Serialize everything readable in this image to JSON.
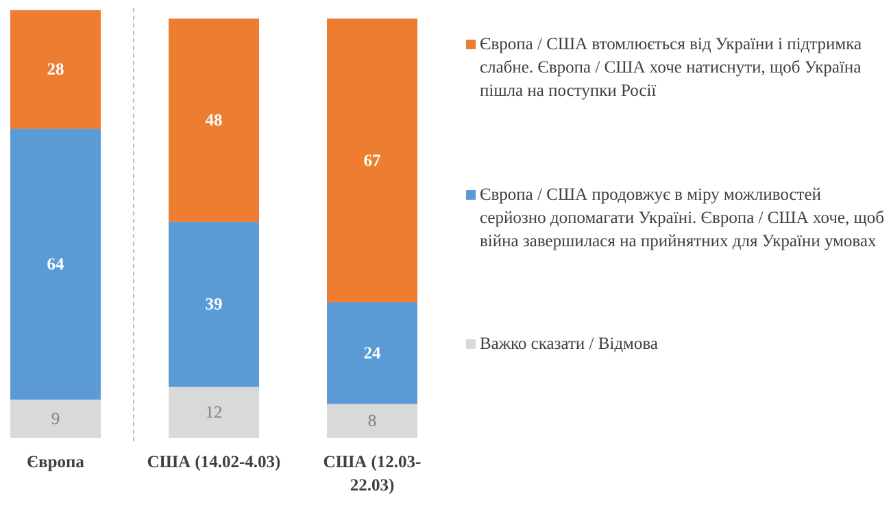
{
  "chart_data": {
    "type": "stacked-bar",
    "categories": [
      "Європа",
      "США (14.02-4.03)",
      "США (12.03-22.03)"
    ],
    "series": [
      {
        "name": "Важко сказати / Відмова",
        "color": "#d9d9d9",
        "values": [
          9,
          12,
          8
        ]
      },
      {
        "name": "Європа / США продовжує в міру можливостей серйозно допомагати Україні. Європа / США хоче, щоб війна завершилася на прийнятних для України умовах",
        "color": "#5b9bd5",
        "values": [
          64,
          39,
          24
        ]
      },
      {
        "name": "Європа / США втомлюється від України і підтримка слабне. Європа / США хоче натиснути, щоб Україна пішла на поступки Росії",
        "color": "#ed7d31",
        "values": [
          28,
          48,
          67
        ]
      }
    ],
    "ylim": [
      0,
      100
    ],
    "legend": "right"
  }
}
